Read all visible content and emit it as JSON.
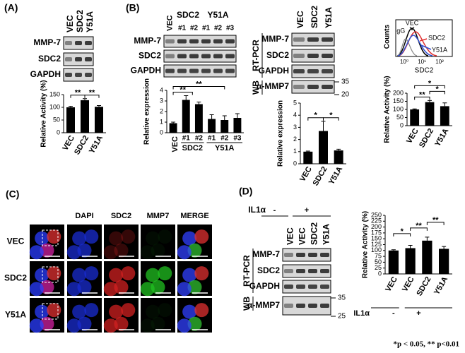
{
  "panel_labels": [
    "(A)",
    "(B)",
    "(C)",
    "(D)"
  ],
  "gels": [
    {
      "lanes": [
        "VEC",
        "SDC2",
        "Y51A"
      ],
      "rows": [
        "MMP-7",
        "SDC2",
        "GAPDH"
      ]
    },
    {
      "lanes": [
        "VEC",
        "SDC2",
        "Y51A"
      ],
      "sublanes": [
        "#1",
        "#2",
        "#1",
        "#2",
        "#3"
      ],
      "rows": [
        "MMP-7",
        "SDC2",
        "GAPDH"
      ]
    },
    {
      "lanes": [
        "VEC",
        "SDC2",
        "Y51A"
      ],
      "rows": [
        "MMP-7",
        "SDC2",
        "GAPDH",
        "α-MMP7"
      ],
      "side_labels": [
        "RT-PCR",
        "WB"
      ],
      "markers": [
        "35",
        "20"
      ]
    },
    {
      "treatment": "IL1α",
      "signs": [
        "-",
        "+"
      ],
      "lanes": [
        "VEC",
        "VEC",
        "SDC2",
        "Y51A"
      ],
      "rows": [
        "MMP-7",
        "SDC2",
        "GAPDH",
        "α-MMP7"
      ],
      "side_labels": [
        "RT-PCR",
        "WB"
      ],
      "markers": [
        "35",
        "25"
      ]
    }
  ],
  "flow": {
    "y_label": "Counts",
    "x_label": "SDC2",
    "tick_labels": [
      "10⁰",
      "10¹",
      "10²"
    ],
    "labels": [
      "VEC",
      "IgG",
      "SDC2",
      "Y51A"
    ]
  },
  "microscopy": {
    "columns": [
      "DAPI",
      "SDC2",
      "MMP7",
      "MERGE"
    ],
    "rows": [
      "VEC",
      "SDC2",
      "Y51A"
    ]
  },
  "footnote": "*p < 0.05, ** p<0.01",
  "chart_data": [
    {
      "type": "bar",
      "y_label": "Relative Activity (%)",
      "categories": [
        "VEC",
        "SDC2",
        "Y51A"
      ],
      "values": [
        100,
        128,
        102
      ],
      "errors": [
        4,
        6,
        5
      ],
      "color": "#000000",
      "ylim": [
        0,
        150
      ],
      "yticks": [
        0,
        50,
        100,
        150
      ],
      "annotations": [
        "**",
        "**"
      ]
    },
    {
      "type": "bar",
      "y_label": "Relative expression",
      "categories": [
        "VEC",
        "#1",
        "#2",
        "#1",
        "#2",
        "#3"
      ],
      "groups": [
        "SDC2",
        "Y51A"
      ],
      "values": [
        0.9,
        3.1,
        2.7,
        1.3,
        1.2,
        1.4
      ],
      "errors": [
        0.1,
        0.4,
        0.2,
        0.4,
        0.4,
        0.4
      ],
      "color": "#000000",
      "ylim": [
        0,
        4
      ],
      "yticks": [
        0,
        1,
        2,
        3,
        4
      ],
      "annotations": [
        "**",
        "**"
      ]
    },
    {
      "type": "bar",
      "y_label": "Relative expression",
      "categories": [
        "VEC",
        "SDC2",
        "Y51A"
      ],
      "values": [
        1,
        2.7,
        1.1
      ],
      "errors": [
        0.05,
        0.8,
        0.1
      ],
      "color": "#000000",
      "ylim": [
        0,
        5
      ],
      "yticks": [
        0,
        1,
        2,
        3,
        4,
        5
      ],
      "annotations": [
        "*",
        "*"
      ]
    },
    {
      "type": "bar",
      "y_label": "Relative Activity (%)",
      "categories": [
        "VEC",
        "SDC2",
        "Y51A"
      ],
      "values": [
        100,
        145,
        120
      ],
      "errors": [
        3,
        10,
        20
      ],
      "color": "#000000",
      "ylim": [
        0,
        200
      ],
      "yticks": [
        0,
        50,
        100,
        150,
        200
      ],
      "annotations": [
        "**",
        "*",
        "*"
      ]
    },
    {
      "type": "bar",
      "y_label": "Relative  Activity (%)",
      "categories": [
        "VEC",
        "VEC",
        "SDC2",
        "Y51A"
      ],
      "group_label": "IL1α",
      "group_values": [
        "-",
        "+"
      ],
      "values": [
        100,
        110,
        142,
        107
      ],
      "errors": [
        3,
        12,
        15,
        10
      ],
      "color": "#000000",
      "ylim": [
        0,
        250
      ],
      "yticks": [
        0,
        25,
        50,
        75,
        100,
        125,
        150,
        175,
        200,
        225,
        250
      ],
      "annotations": [
        "*",
        "**",
        "**"
      ]
    }
  ]
}
